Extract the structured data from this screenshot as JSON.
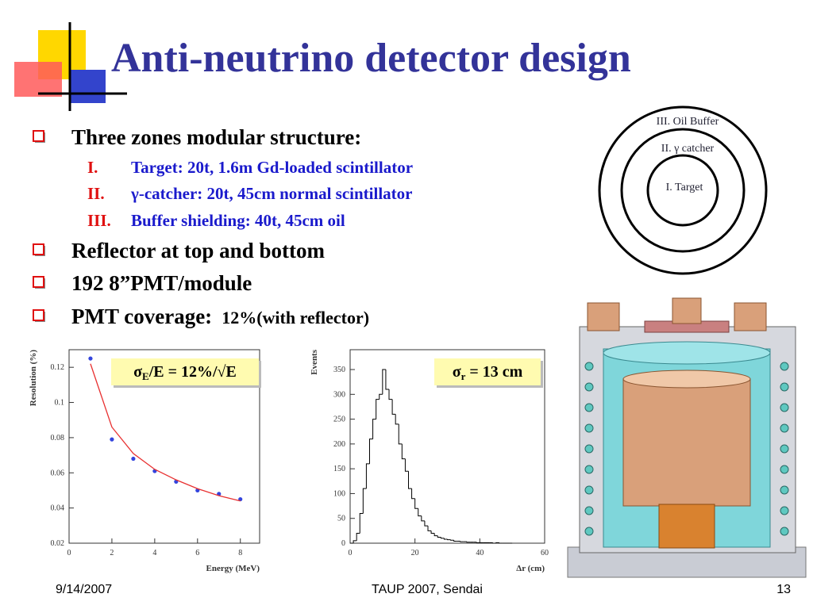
{
  "title": "Anti-neutrino detector design",
  "bullets": [
    {
      "text": "Three zones modular structure:",
      "items": [
        {
          "numeral": "I.",
          "text": "Target: 20t, 1.6m Gd-loaded scintillator"
        },
        {
          "numeral": "II.",
          "text": "γ-catcher: 20t, 45cm normal scintillator"
        },
        {
          "numeral": "III.",
          "text": "Buffer shielding: 40t, 45cm oil"
        }
      ]
    },
    {
      "text": "Reflector at top and bottom"
    },
    {
      "text": "192 8”PMT/module"
    },
    {
      "text": "PMT coverage:",
      "note": "12%(with reflector)"
    }
  ],
  "zones_diagram": {
    "labels": [
      "III. Oil Buffer",
      "II. γ catcher",
      "I. Target"
    ]
  },
  "chart_data": [
    {
      "type": "scatter",
      "x_label": "Energy (MeV)",
      "y_label": "Resolution (%)",
      "annotation": {
        "symbol": "σ",
        "subscript": "E",
        "text": "/E = 12%/√E"
      },
      "x": [
        1,
        2,
        3,
        4,
        5,
        6,
        7,
        8
      ],
      "series": [
        {
          "color": "#3344dd",
          "mode": "markers",
          "values": [
            0.125,
            0.079,
            0.068,
            0.061,
            0.055,
            0.05,
            0.048,
            0.045
          ]
        },
        {
          "color": "#e83030",
          "mode": "line",
          "values": [
            0.122,
            0.086,
            0.071,
            0.062,
            0.056,
            0.051,
            0.047,
            0.044
          ]
        }
      ],
      "xlim": [
        0,
        8.9
      ],
      "xticks": [
        0,
        2,
        4,
        6,
        8
      ],
      "ylim": [
        0.02,
        0.13
      ],
      "yticks": [
        0.02,
        0.04,
        0.06,
        0.08,
        0.1,
        0.12
      ]
    },
    {
      "type": "histogram",
      "x_label": "Δr (cm)",
      "y_label": "Events",
      "annotation": {
        "symbol": "σ",
        "subscript": "r",
        "text": " = 13 cm"
      },
      "color": "#000000",
      "bins": [
        0,
        1,
        2,
        3,
        4,
        5,
        6,
        7,
        8,
        9,
        10,
        11,
        12,
        13,
        14,
        15,
        16,
        17,
        18,
        19,
        20,
        21,
        22,
        23,
        24,
        25,
        26,
        27,
        28,
        29,
        30,
        31,
        32,
        33,
        34,
        35,
        36,
        37,
        38,
        39,
        40,
        41,
        42,
        43,
        44,
        45,
        46,
        47,
        48,
        49,
        50
      ],
      "values": [
        0,
        5,
        20,
        60,
        110,
        160,
        210,
        250,
        290,
        300,
        350,
        310,
        290,
        260,
        240,
        200,
        170,
        145,
        110,
        90,
        70,
        55,
        45,
        35,
        25,
        20,
        15,
        12,
        10,
        8,
        7,
        6,
        4,
        4,
        3,
        3,
        2,
        2,
        2,
        1,
        1,
        1,
        1,
        1,
        0,
        1,
        0,
        0,
        0,
        0
      ],
      "xlim": [
        0,
        60
      ],
      "xticks": [
        0,
        20,
        40,
        60
      ],
      "ylim": [
        0,
        390
      ],
      "yticks": [
        0,
        50,
        100,
        150,
        200,
        250,
        300,
        350
      ]
    }
  ],
  "footer": {
    "date": "9/14/2007",
    "event": "TAUP 2007, Sendai",
    "page": "13"
  }
}
